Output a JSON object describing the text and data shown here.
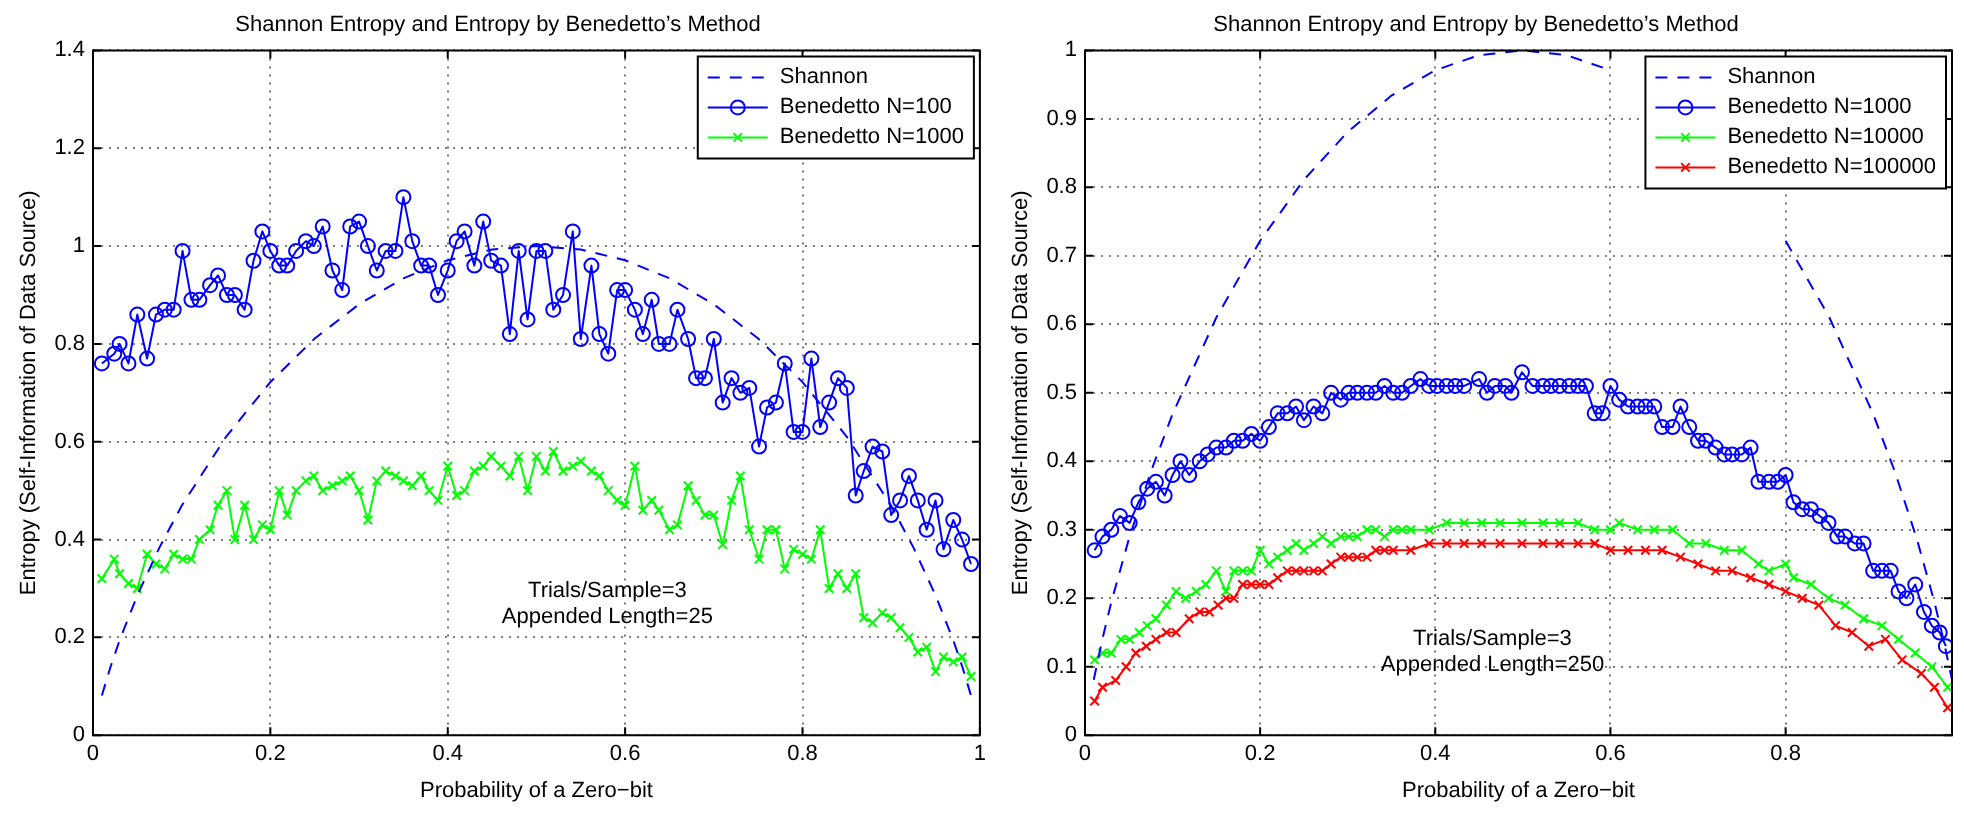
{
  "chart_data": [
    {
      "type": "line",
      "title": "Shannon Entropy and Entropy by Benedetto’s Method",
      "xlabel": "Probability of a Zero−bit",
      "ylabel": "Entropy (Self-Information of Data Source)",
      "annotations": [
        "Trials/Sample=3",
        "Appended Length=25"
      ],
      "xlim": [
        0,
        1
      ],
      "ylim": [
        0,
        1.4
      ],
      "xticks": [
        0,
        0.2,
        0.4,
        0.6,
        0.8,
        1
      ],
      "yticks": [
        0,
        0.2,
        0.4,
        0.6,
        0.8,
        1,
        1.2,
        1.4
      ],
      "grid": true,
      "legend": "top right",
      "x": [
        0.01,
        0.024,
        0.03,
        0.04,
        0.05,
        0.061,
        0.071,
        0.081,
        0.091,
        0.101,
        0.111,
        0.12,
        0.132,
        0.141,
        0.151,
        0.16,
        0.171,
        0.181,
        0.191,
        0.2,
        0.21,
        0.219,
        0.229,
        0.24,
        0.249,
        0.259,
        0.27,
        0.281,
        0.29,
        0.3,
        0.31,
        0.32,
        0.33,
        0.341,
        0.35,
        0.36,
        0.37,
        0.379,
        0.389,
        0.4,
        0.41,
        0.419,
        0.43,
        0.44,
        0.449,
        0.46,
        0.47,
        0.48,
        0.49,
        0.5,
        0.51,
        0.519,
        0.53,
        0.541,
        0.55,
        0.562,
        0.571,
        0.581,
        0.591,
        0.6,
        0.611,
        0.62,
        0.63,
        0.638,
        0.65,
        0.659,
        0.671,
        0.68,
        0.69,
        0.7,
        0.71,
        0.72,
        0.73,
        0.74,
        0.751,
        0.76,
        0.77,
        0.78,
        0.79,
        0.8,
        0.81,
        0.82,
        0.83,
        0.84,
        0.85,
        0.86,
        0.869,
        0.879,
        0.89,
        0.9,
        0.91,
        0.92,
        0.93,
        0.94,
        0.95,
        0.959,
        0.97,
        0.98,
        0.99
      ],
      "series": [
        {
          "name": "Shannon",
          "type": "line",
          "color": "#0000ff",
          "marker": "none",
          "line_style": "dashed",
          "x": [
            0.01,
            0.02,
            0.03,
            0.05,
            0.075,
            0.1,
            0.15,
            0.2,
            0.25,
            0.3,
            0.35,
            0.4,
            0.45,
            0.5,
            0.55,
            0.6,
            0.65,
            0.7,
            0.75,
            0.8,
            0.85,
            0.9,
            0.925,
            0.95,
            0.97,
            0.98,
            0.99
          ],
          "values": [
            0.081,
            0.141,
            0.194,
            0.286,
            0.384,
            0.469,
            0.61,
            0.722,
            0.811,
            0.881,
            0.934,
            0.971,
            0.993,
            1,
            0.993,
            0.971,
            0.934,
            0.881,
            0.811,
            0.722,
            0.61,
            0.469,
            0.384,
            0.286,
            0.194,
            0.141,
            0.081
          ]
        },
        {
          "name": "Benedetto N=100",
          "type": "line",
          "color": "#0000ff",
          "marker": "circle",
          "line_style": "solid",
          "values": [
            0.76,
            0.78,
            0.8,
            0.76,
            0.86,
            0.77,
            0.86,
            0.87,
            0.87,
            0.99,
            0.89,
            0.89,
            0.92,
            0.94,
            0.9,
            0.9,
            0.87,
            0.97,
            1.03,
            0.99,
            0.96,
            0.96,
            0.99,
            1.01,
            1,
            1.04,
            0.95,
            0.91,
            1.04,
            1.05,
            1,
            0.95,
            0.99,
            0.99,
            1.1,
            1.01,
            0.96,
            0.96,
            0.9,
            0.95,
            1.01,
            1.03,
            0.96,
            1.05,
            0.97,
            0.96,
            0.82,
            0.99,
            0.85,
            0.99,
            0.99,
            0.87,
            0.9,
            1.03,
            0.81,
            0.96,
            0.82,
            0.78,
            0.91,
            0.91,
            0.87,
            0.82,
            0.89,
            0.8,
            0.8,
            0.87,
            0.81,
            0.73,
            0.73,
            0.81,
            0.68,
            0.73,
            0.7,
            0.71,
            0.59,
            0.67,
            0.68,
            0.76,
            0.62,
            0.62,
            0.77,
            0.63,
            0.68,
            0.73,
            0.71,
            0.49,
            0.54,
            0.59,
            0.58,
            0.45,
            0.48,
            0.53,
            0.48,
            0.42,
            0.48,
            0.38,
            0.44,
            0.4,
            0.35
          ]
        },
        {
          "name": "Benedetto N=1000",
          "type": "line",
          "color": "#00ff00",
          "marker": "cross",
          "line_style": "solid",
          "values": [
            0.32,
            0.36,
            0.33,
            0.31,
            0.3,
            0.37,
            0.35,
            0.34,
            0.37,
            0.36,
            0.36,
            0.4,
            0.42,
            0.47,
            0.5,
            0.4,
            0.47,
            0.4,
            0.43,
            0.42,
            0.5,
            0.45,
            0.5,
            0.52,
            0.53,
            0.5,
            0.51,
            0.52,
            0.53,
            0.5,
            0.44,
            0.52,
            0.54,
            0.53,
            0.52,
            0.51,
            0.53,
            0.5,
            0.48,
            0.55,
            0.49,
            0.5,
            0.54,
            0.55,
            0.57,
            0.55,
            0.53,
            0.57,
            0.5,
            0.57,
            0.54,
            0.58,
            0.54,
            0.55,
            0.56,
            0.54,
            0.53,
            0.5,
            0.48,
            0.47,
            0.55,
            0.46,
            0.48,
            0.46,
            0.42,
            0.43,
            0.51,
            0.48,
            0.45,
            0.45,
            0.39,
            0.48,
            0.53,
            0.42,
            0.36,
            0.42,
            0.42,
            0.34,
            0.38,
            0.37,
            0.36,
            0.42,
            0.3,
            0.33,
            0.3,
            0.33,
            0.24,
            0.23,
            0.25,
            0.24,
            0.22,
            0.2,
            0.17,
            0.18,
            0.13,
            0.16,
            0.15,
            0.16,
            0.12
          ]
        }
      ]
    },
    {
      "type": "line",
      "title": "Shannon Entropy and Entropy by Benedetto’s Method",
      "xlabel": "Probability of a Zero−bit",
      "ylabel": "Entropy (Self-Information of Data Source)",
      "annotations": [
        "Trials/Sample=3",
        "Appended Length=250"
      ],
      "xlim": [
        0,
        0.99
      ],
      "ylim": [
        0,
        1
      ],
      "xticks": [
        0,
        0.2,
        0.4,
        0.6,
        0.8
      ],
      "yticks": [
        0,
        0.1,
        0.2,
        0.3,
        0.4,
        0.5,
        0.6,
        0.7,
        0.8,
        0.9,
        1
      ],
      "grid": true,
      "legend": "top right",
      "series": [
        {
          "name": "Shannon",
          "type": "line",
          "color": "#0000ff",
          "marker": "none",
          "line_style": "dashed",
          "x": [
            0.01,
            0.02,
            0.03,
            0.05,
            0.075,
            0.1,
            0.15,
            0.2,
            0.25,
            0.3,
            0.35,
            0.4,
            0.45,
            0.5,
            0.55,
            0.6,
            0.65,
            0.7,
            0.75,
            0.8,
            0.85,
            0.9,
            0.925,
            0.95,
            0.97,
            0.98,
            0.99
          ],
          "values": [
            0.081,
            0.141,
            0.194,
            0.286,
            0.384,
            0.469,
            0.61,
            0.722,
            0.811,
            0.881,
            0.934,
            0.971,
            0.993,
            1,
            0.993,
            0.971,
            null,
            null,
            null,
            0.722,
            0.61,
            0.469,
            0.384,
            0.286,
            0.194,
            0.141,
            0.081
          ]
        },
        {
          "name": "Benedetto N=1000",
          "type": "line",
          "color": "#0000ff",
          "marker": "circle",
          "line_style": "solid",
          "x": [
            0.011,
            0.02,
            0.03,
            0.04,
            0.051,
            0.061,
            0.071,
            0.081,
            0.091,
            0.1,
            0.109,
            0.119,
            0.131,
            0.14,
            0.15,
            0.161,
            0.17,
            0.18,
            0.19,
            0.2,
            0.21,
            0.22,
            0.231,
            0.241,
            0.25,
            0.261,
            0.271,
            0.281,
            0.292,
            0.301,
            0.311,
            0.322,
            0.332,
            0.342,
            0.352,
            0.362,
            0.372,
            0.383,
            0.393,
            0.402,
            0.413,
            0.423,
            0.433,
            0.45,
            0.459,
            0.468,
            0.48,
            0.487,
            0.499,
            0.511,
            0.523,
            0.532,
            0.542,
            0.553,
            0.563,
            0.572,
            0.582,
            0.591,
            0.6,
            0.61,
            0.62,
            0.631,
            0.64,
            0.65,
            0.659,
            0.671,
            0.68,
            0.69,
            0.7,
            0.709,
            0.72,
            0.73,
            0.739,
            0.75,
            0.76,
            0.769,
            0.781,
            0.791,
            0.8,
            0.809,
            0.819,
            0.829,
            0.839,
            0.849,
            0.859,
            0.868,
            0.879,
            0.889,
            0.9,
            0.91,
            0.92,
            0.929,
            0.938,
            0.948,
            0.958,
            0.967,
            0.976,
            0.983
          ],
          "values": [
            0.27,
            0.29,
            0.3,
            0.32,
            0.31,
            0.34,
            0.36,
            0.37,
            0.35,
            0.38,
            0.4,
            0.38,
            0.4,
            0.41,
            0.42,
            0.42,
            0.43,
            0.43,
            0.44,
            0.43,
            0.45,
            0.47,
            0.47,
            0.48,
            0.46,
            0.48,
            0.47,
            0.5,
            0.49,
            0.5,
            0.5,
            0.5,
            0.5,
            0.51,
            0.5,
            0.5,
            0.51,
            0.52,
            0.51,
            0.51,
            0.51,
            0.51,
            0.51,
            0.52,
            0.5,
            0.51,
            0.51,
            0.5,
            0.53,
            0.51,
            0.51,
            0.51,
            0.51,
            0.51,
            0.51,
            0.51,
            0.47,
            0.47,
            0.51,
            0.49,
            0.48,
            0.48,
            0.48,
            0.48,
            0.45,
            0.45,
            0.48,
            0.45,
            0.43,
            0.43,
            0.42,
            0.41,
            0.41,
            0.41,
            0.42,
            0.37,
            0.37,
            0.37,
            0.38,
            0.34,
            0.33,
            0.33,
            0.32,
            0.31,
            0.29,
            0.29,
            0.28,
            0.28,
            0.24,
            0.24,
            0.24,
            0.21,
            0.2,
            0.22,
            0.18,
            0.16,
            0.15,
            0.13
          ]
        },
        {
          "name": "Benedetto N=10000",
          "type": "line",
          "color": "#00ff00",
          "marker": "cross",
          "line_style": "solid",
          "x": [
            0.011,
            0.02,
            0.03,
            0.041,
            0.051,
            0.062,
            0.071,
            0.081,
            0.093,
            0.104,
            0.115,
            0.127,
            0.138,
            0.15,
            0.161,
            0.17,
            0.18,
            0.19,
            0.2,
            0.21,
            0.22,
            0.231,
            0.241,
            0.25,
            0.261,
            0.271,
            0.281,
            0.292,
            0.301,
            0.311,
            0.322,
            0.332,
            0.342,
            0.352,
            0.362,
            0.372,
            0.393,
            0.413,
            0.433,
            0.453,
            0.474,
            0.499,
            0.523,
            0.542,
            0.563,
            0.582,
            0.6,
            0.61,
            0.631,
            0.65,
            0.671,
            0.69,
            0.709,
            0.73,
            0.75,
            0.769,
            0.781,
            0.8,
            0.809,
            0.829,
            0.849,
            0.868,
            0.889,
            0.91,
            0.929,
            0.948,
            0.967,
            0.985
          ],
          "values": [
            0.11,
            0.12,
            0.12,
            0.14,
            0.14,
            0.15,
            0.16,
            0.17,
            0.19,
            0.21,
            0.2,
            0.21,
            0.22,
            0.24,
            0.21,
            0.24,
            0.24,
            0.24,
            0.27,
            0.25,
            0.26,
            0.27,
            0.28,
            0.27,
            0.28,
            0.29,
            0.28,
            0.29,
            0.29,
            0.29,
            0.3,
            0.3,
            0.29,
            0.3,
            0.3,
            0.3,
            0.3,
            0.31,
            0.31,
            0.31,
            0.31,
            0.31,
            0.31,
            0.31,
            0.31,
            0.3,
            0.3,
            0.31,
            0.3,
            0.3,
            0.3,
            0.28,
            0.28,
            0.27,
            0.27,
            0.25,
            0.24,
            0.25,
            0.23,
            0.22,
            0.2,
            0.19,
            0.17,
            0.16,
            0.14,
            0.12,
            0.1,
            0.07
          ]
        },
        {
          "name": "Benedetto N=100000",
          "type": "line",
          "color": "#ff0000",
          "marker": "cross",
          "line_style": "solid",
          "x": [
            0.011,
            0.02,
            0.035,
            0.047,
            0.058,
            0.07,
            0.081,
            0.093,
            0.104,
            0.119,
            0.131,
            0.142,
            0.152,
            0.161,
            0.17,
            0.18,
            0.19,
            0.2,
            0.21,
            0.22,
            0.231,
            0.241,
            0.25,
            0.261,
            0.271,
            0.281,
            0.292,
            0.301,
            0.311,
            0.322,
            0.332,
            0.342,
            0.352,
            0.372,
            0.393,
            0.413,
            0.433,
            0.453,
            0.474,
            0.499,
            0.523,
            0.542,
            0.563,
            0.582,
            0.6,
            0.62,
            0.64,
            0.659,
            0.68,
            0.7,
            0.72,
            0.739,
            0.76,
            0.781,
            0.8,
            0.819,
            0.838,
            0.857,
            0.876,
            0.895,
            0.914,
            0.933,
            0.955,
            0.97,
            0.985
          ],
          "values": [
            0.05,
            0.07,
            0.08,
            0.1,
            0.12,
            0.13,
            0.14,
            0.15,
            0.15,
            0.17,
            0.18,
            0.18,
            0.19,
            0.2,
            0.2,
            0.22,
            0.22,
            0.22,
            0.22,
            0.23,
            0.24,
            0.24,
            0.24,
            0.24,
            0.24,
            0.25,
            0.26,
            0.26,
            0.26,
            0.26,
            0.27,
            0.27,
            0.27,
            0.27,
            0.28,
            0.28,
            0.28,
            0.28,
            0.28,
            0.28,
            0.28,
            0.28,
            0.28,
            0.28,
            0.27,
            0.27,
            0.27,
            0.27,
            0.26,
            0.25,
            0.24,
            0.24,
            0.23,
            0.22,
            0.21,
            0.2,
            0.19,
            0.16,
            0.15,
            0.13,
            0.14,
            0.11,
            0.09,
            0.07,
            0.04
          ]
        }
      ]
    }
  ]
}
